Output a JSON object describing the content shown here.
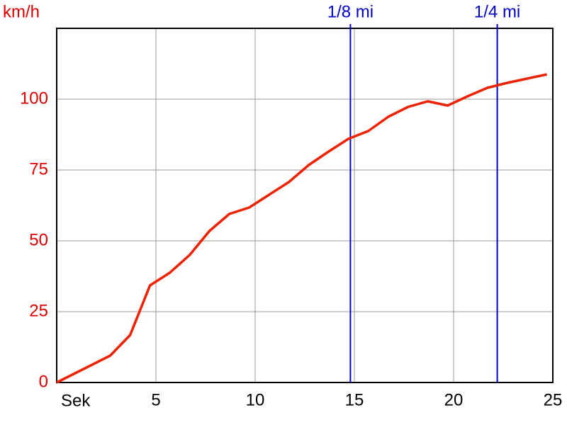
{
  "chart_data": {
    "type": "line",
    "y_label": "km/h",
    "x_label": "Sek",
    "x": [
      0,
      2.7,
      3.7,
      4.7,
      5.7,
      6.7,
      7.7,
      8.7,
      9.7,
      10.7,
      11.7,
      12.7,
      13.7,
      14.7,
      15.7,
      16.7,
      17.7,
      18.7,
      19.7,
      20.7,
      21.7,
      22.7,
      23.7,
      24.7
    ],
    "values": [
      0,
      9.5,
      16.75,
      34.25,
      38.75,
      45,
      53.5,
      59.5,
      61.75,
      66.25,
      70.75,
      76.75,
      81.5,
      86,
      88.75,
      93.75,
      97.25,
      99.25,
      97.75,
      101,
      104,
      105.75,
      107.25,
      108.75
    ],
    "color": "#ee2200",
    "xlim": [
      0,
      25
    ],
    "xticks": [
      5,
      10,
      15,
      20,
      25
    ],
    "ylim": [
      0,
      125
    ],
    "yticks": [
      0,
      25,
      50,
      75,
      100
    ],
    "grid": true,
    "axis_label_color": "#dd0000",
    "markers": [
      {
        "x": 14.8,
        "label": "1/8 mi"
      },
      {
        "x": 22.2,
        "label": "1/4 mi"
      }
    ],
    "marker_color": "#0000cc"
  }
}
